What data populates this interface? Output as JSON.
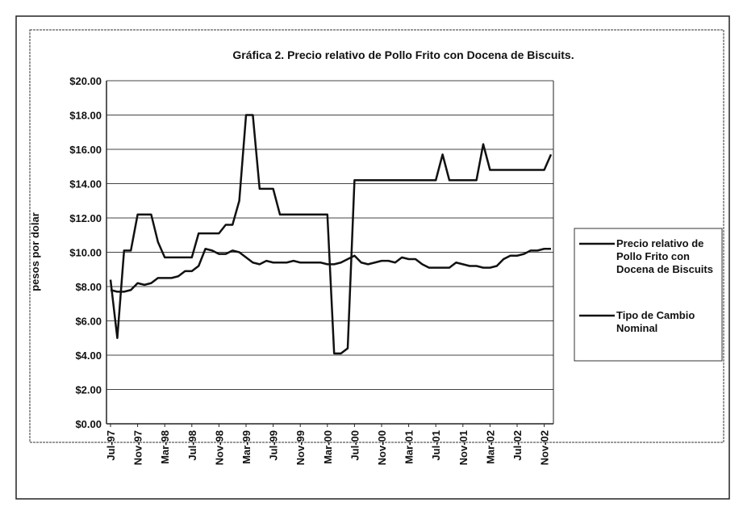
{
  "chart_data": {
    "type": "line",
    "title": "Gráfica 2.  Precio relativo de Pollo Frito con Docena de Biscuits.",
    "y_label": "pesos por dolar",
    "categories": [
      "Jul-97",
      null,
      null,
      null,
      "Nov-97",
      null,
      null,
      null,
      "Mar-98",
      null,
      null,
      null,
      "Jul-98",
      null,
      null,
      null,
      "Nov-98",
      null,
      null,
      null,
      "Mar-99",
      null,
      null,
      null,
      "Jul-99",
      null,
      null,
      null,
      "Nov-99",
      null,
      null,
      null,
      "Mar-00",
      null,
      null,
      null,
      "Jul-00",
      null,
      null,
      null,
      "Nov-00",
      null,
      null,
      null,
      "Mar-01",
      null,
      null,
      null,
      "Jul-01",
      null,
      null,
      null,
      "Nov-01",
      null,
      null,
      null,
      "Mar-02",
      null,
      null,
      null,
      "Jul-02",
      null,
      null,
      null,
      "Nov-02",
      null
    ],
    "series": [
      {
        "name": "Precio relativo de Pollo Frito con Docena de Biscuits",
        "color": "#111111",
        "values": [
          8.4,
          5.0,
          10.1,
          10.1,
          12.2,
          12.2,
          12.2,
          10.6,
          9.7,
          9.7,
          9.7,
          9.7,
          9.7,
          11.1,
          11.1,
          11.1,
          11.1,
          11.6,
          11.6,
          13.0,
          18.0,
          18.0,
          13.7,
          13.7,
          13.7,
          12.2,
          12.2,
          12.2,
          12.2,
          12.2,
          12.2,
          12.2,
          12.2,
          4.1,
          4.1,
          4.4,
          14.2,
          14.2,
          14.2,
          14.2,
          14.2,
          14.2,
          14.2,
          14.2,
          14.2,
          14.2,
          14.2,
          14.2,
          14.2,
          15.7,
          14.2,
          14.2,
          14.2,
          14.2,
          14.2,
          16.3,
          14.8,
          14.8,
          14.8,
          14.8,
          14.8,
          14.8,
          14.8,
          14.8,
          14.8,
          15.7
        ]
      },
      {
        "name": "Tipo de Cambio Nominal",
        "color": "#111111",
        "values": [
          7.8,
          7.7,
          7.7,
          7.8,
          8.2,
          8.1,
          8.2,
          8.5,
          8.5,
          8.5,
          8.6,
          8.9,
          8.9,
          9.2,
          10.2,
          10.1,
          9.9,
          9.9,
          10.1,
          10.0,
          9.7,
          9.4,
          9.3,
          9.5,
          9.4,
          9.4,
          9.4,
          9.5,
          9.4,
          9.4,
          9.4,
          9.4,
          9.3,
          9.3,
          9.4,
          9.6,
          9.8,
          9.4,
          9.3,
          9.4,
          9.5,
          9.5,
          9.4,
          9.7,
          9.6,
          9.6,
          9.3,
          9.1,
          9.1,
          9.1,
          9.1,
          9.4,
          9.3,
          9.2,
          9.2,
          9.1,
          9.1,
          9.2,
          9.6,
          9.8,
          9.8,
          9.9,
          10.1,
          10.1,
          10.2,
          10.2
        ]
      }
    ],
    "ylim": [
      0,
      20
    ],
    "yticks": [
      {
        "value": 0,
        "label": "$0.00"
      },
      {
        "value": 2,
        "label": "$2.00"
      },
      {
        "value": 4,
        "label": "$4.00"
      },
      {
        "value": 6,
        "label": "$6.00"
      },
      {
        "value": 8,
        "label": "$8.00"
      },
      {
        "value": 10,
        "label": "$10.00"
      },
      {
        "value": 12,
        "label": "$12.00"
      },
      {
        "value": 14,
        "label": "$14.00"
      },
      {
        "value": 16,
        "label": "$16.00"
      },
      {
        "value": 18,
        "label": "$18.00"
      },
      {
        "value": 20,
        "label": "$20.00"
      }
    ],
    "grid": true,
    "legend": "right"
  }
}
